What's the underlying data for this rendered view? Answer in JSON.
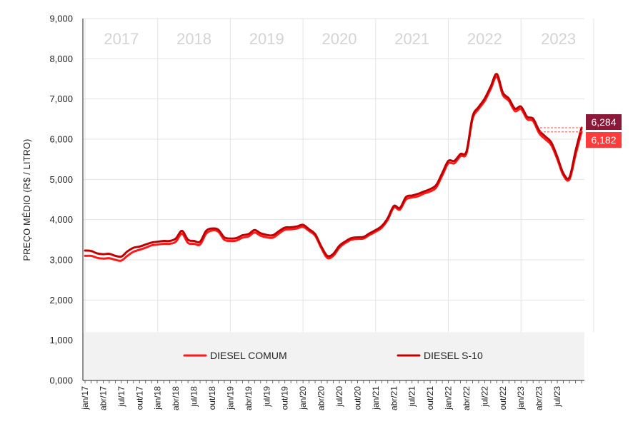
{
  "chart_data": {
    "type": "line",
    "ylabel": "PREÇO MÉDIO (R$ / LITRO)",
    "ylim": [
      0,
      9000
    ],
    "y_ticks": [
      "0,000",
      "1,000",
      "2,000",
      "3,000",
      "4,000",
      "5,000",
      "6,000",
      "7,000",
      "8,000",
      "9,000"
    ],
    "year_labels": [
      "2017",
      "2018",
      "2019",
      "2020",
      "2021",
      "2022",
      "2023"
    ],
    "x_tick_labels": [
      "jan/17",
      "abr/17",
      "jul/17",
      "out/17",
      "jan/18",
      "abr/18",
      "jul/18",
      "out/18",
      "jan/19",
      "abr/19",
      "jul/19",
      "out/19",
      "jan/20",
      "abr/20",
      "jul/20",
      "out/20",
      "jan/21",
      "abr/21",
      "jul/21",
      "out/21",
      "jan/22",
      "abr/22",
      "jul/22",
      "out/22",
      "jan/23",
      "abr/23",
      "jul/23"
    ],
    "legend_position": "bottom",
    "grid": true,
    "series": [
      {
        "name": "DIESEL COMUM",
        "color": "#ff1a1a",
        "values": [
          3100,
          3100,
          3050,
          3030,
          3040,
          3000,
          2980,
          3100,
          3200,
          3250,
          3300,
          3360,
          3380,
          3400,
          3400,
          3450,
          3650,
          3420,
          3400,
          3380,
          3650,
          3730,
          3700,
          3500,
          3470,
          3480,
          3550,
          3580,
          3680,
          3600,
          3560,
          3550,
          3650,
          3750,
          3760,
          3780,
          3820,
          3720,
          3600,
          3300,
          3050,
          3100,
          3300,
          3420,
          3500,
          3520,
          3530,
          3620,
          3700,
          3800,
          4000,
          4300,
          4250,
          4500,
          4550,
          4580,
          4650,
          4700,
          4800,
          5100,
          5400,
          5400,
          5580,
          5650,
          6500,
          6750,
          6950,
          7250,
          7550,
          7100,
          6950,
          6700,
          6750,
          6500,
          6450,
          6150,
          6000,
          5850,
          5500,
          5100,
          5000,
          5600,
          6182
        ]
      },
      {
        "name": "DIESEL S-10",
        "color": "#c00000",
        "values": [
          3230,
          3220,
          3160,
          3140,
          3150,
          3100,
          3080,
          3210,
          3300,
          3330,
          3380,
          3430,
          3450,
          3470,
          3470,
          3530,
          3720,
          3500,
          3470,
          3450,
          3720,
          3780,
          3750,
          3560,
          3530,
          3540,
          3610,
          3640,
          3740,
          3660,
          3620,
          3610,
          3710,
          3800,
          3810,
          3830,
          3870,
          3760,
          3640,
          3340,
          3100,
          3150,
          3350,
          3460,
          3540,
          3560,
          3570,
          3660,
          3740,
          3840,
          4040,
          4340,
          4290,
          4560,
          4600,
          4640,
          4700,
          4760,
          4860,
          5160,
          5460,
          5460,
          5630,
          5700,
          6560,
          6800,
          7010,
          7310,
          7620,
          7160,
          7010,
          6760,
          6810,
          6560,
          6510,
          6220,
          6070,
          5920,
          5560,
          5150,
          5050,
          5700,
          6284
        ]
      }
    ],
    "end_labels": [
      {
        "series": "DIESEL S-10",
        "text": "6,284",
        "color": "#8b1a3a"
      },
      {
        "series": "DIESEL COMUM",
        "text": "6,182",
        "color": "#ff3b3b"
      }
    ]
  }
}
